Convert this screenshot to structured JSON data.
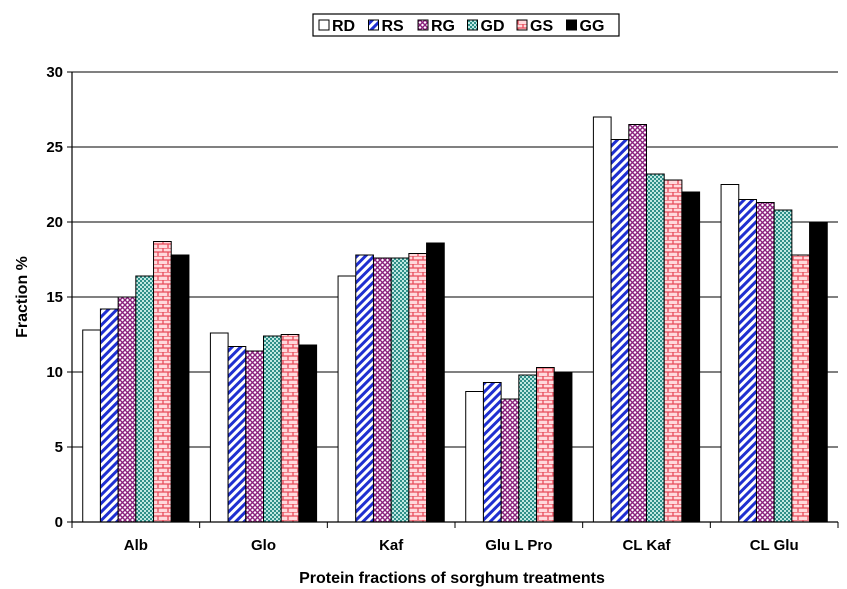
{
  "chart_data": {
    "type": "bar",
    "xlabel": "Protein fractions of sorghum treatments",
    "ylabel": "Fraction %",
    "ylim": [
      0,
      30
    ],
    "yticks": [
      0,
      5,
      10,
      15,
      20,
      25,
      30
    ],
    "grid": "horizontal",
    "legend_position": "top",
    "categories": [
      "Alb",
      "Glo",
      "Kaf",
      "Glu L Pro",
      "CL Kaf",
      "CL Glu"
    ],
    "series": [
      {
        "name": "RD",
        "values": [
          12.8,
          12.6,
          16.4,
          8.7,
          27.0,
          22.5
        ],
        "fill": "#ffffff",
        "pattern": "none"
      },
      {
        "name": "RS",
        "values": [
          14.2,
          11.7,
          17.8,
          9.3,
          25.5,
          21.5
        ],
        "fill": "#1f2fd0",
        "pattern": "diagonal"
      },
      {
        "name": "RG",
        "values": [
          15.0,
          11.4,
          17.6,
          8.2,
          26.5,
          21.3
        ],
        "fill": "#8a1f7c",
        "pattern": "checker"
      },
      {
        "name": "GD",
        "values": [
          16.4,
          12.4,
          17.6,
          9.8,
          23.2,
          20.8
        ],
        "fill": "#3fa8a0",
        "pattern": "dots"
      },
      {
        "name": "GS",
        "values": [
          18.7,
          12.5,
          17.9,
          10.3,
          22.8,
          17.8
        ],
        "fill": "#e84b5a",
        "pattern": "brick"
      },
      {
        "name": "GG",
        "values": [
          17.8,
          11.8,
          18.6,
          10.0,
          22.0,
          20.0
        ],
        "fill": "#000000",
        "pattern": "solid"
      }
    ]
  }
}
